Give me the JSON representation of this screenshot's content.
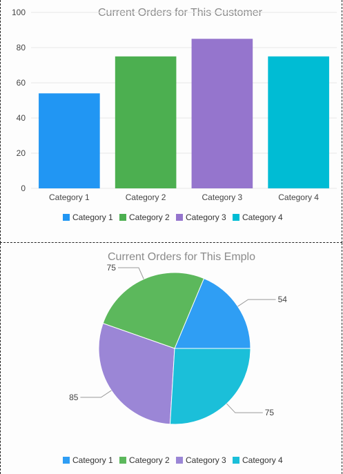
{
  "chart_data": [
    {
      "type": "bar",
      "title": "Current Orders for This Customer",
      "categories": [
        "Category 1",
        "Category 2",
        "Category 3",
        "Category 4"
      ],
      "values": [
        54,
        75,
        85,
        75
      ],
      "colors": [
        "#2196f3",
        "#4caf50",
        "#9575cd",
        "#00bcd4"
      ],
      "ylim": [
        0,
        100
      ],
      "yticks": [
        0,
        20,
        40,
        60,
        80,
        100
      ],
      "grid": true,
      "legend": "bottom"
    },
    {
      "type": "pie",
      "title": "Current Orders for This Emplo",
      "categories": [
        "Category 1",
        "Category 2",
        "Category 3",
        "Category 4"
      ],
      "values": [
        54,
        75,
        85,
        75
      ],
      "slice_labels": [
        "54",
        "75",
        "85",
        "75"
      ],
      "colors": [
        "#2f9ef4",
        "#5cb85c",
        "#9b86d6",
        "#1bbfd9"
      ],
      "legend": "bottom"
    }
  ]
}
